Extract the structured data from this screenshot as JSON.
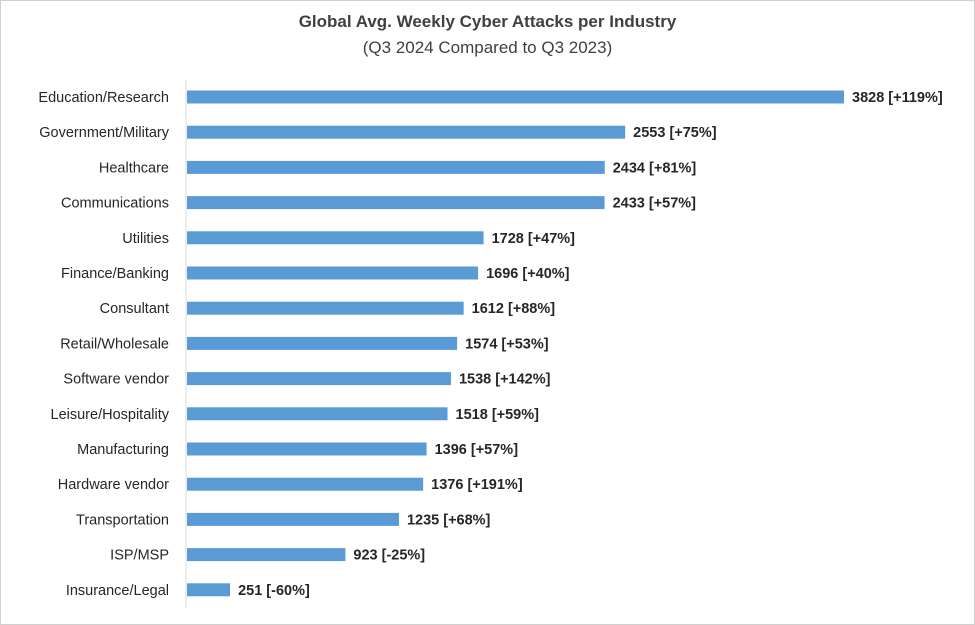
{
  "chart_data": {
    "type": "bar",
    "orientation": "horizontal",
    "title": "Global Avg. Weekly Cyber Attacks per Industry",
    "subtitle": "(Q3 2024 Compared to Q3 2023)",
    "bar_color": "#5B9BD5",
    "categories": [
      "Education/Research",
      "Government/Military",
      "Healthcare",
      "Communications",
      "Utilities",
      "Finance/Banking",
      "Consultant",
      "Retail/Wholesale",
      "Software vendor",
      "Leisure/Hospitality",
      "Manufacturing",
      "Hardware vendor",
      "Transportation",
      "ISP/MSP",
      "Insurance/Legal"
    ],
    "values": [
      3828,
      2553,
      2434,
      2433,
      1728,
      1696,
      1612,
      1574,
      1538,
      1518,
      1396,
      1376,
      1235,
      923,
      251
    ],
    "data_labels": [
      "3828 [+119%]",
      "2553 [+75%]",
      "2434 [+81%]",
      "2433 [+57%]",
      "1728 [+47%]",
      "1696 [+40%]",
      "1612 [+88%]",
      "1574 [+53%]",
      "1538 [+142%]",
      "1518 [+59%]",
      "1396 [+57%]",
      "1376 [+191%]",
      "1235 [+68%]",
      "923 [-25%]",
      "251 [-60%]"
    ],
    "xlim": [
      0,
      3828
    ],
    "grid": false,
    "legend": "none"
  }
}
